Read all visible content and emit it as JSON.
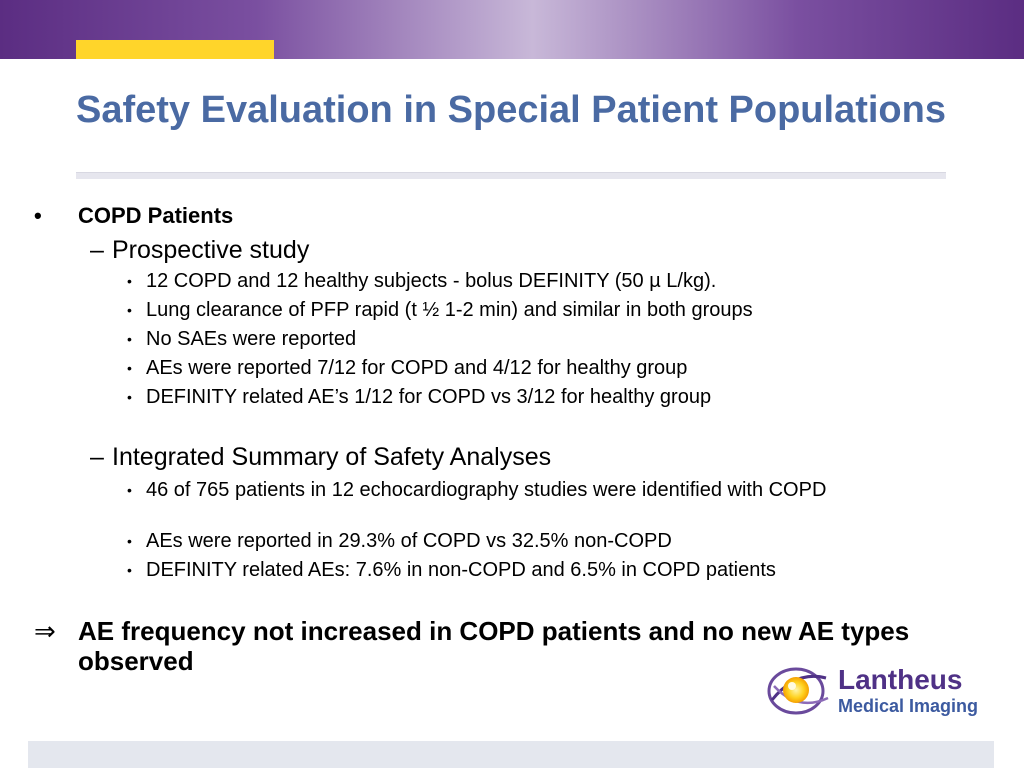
{
  "title": "Safety Evaluation in Special Patient Populations",
  "colors": {
    "title": "#4a6aa3",
    "accent": "#ffd52a",
    "band": "#5b2d82",
    "logo_purple": "#4f3186",
    "logo_blue": "#3c5aa0"
  },
  "section": {
    "bullet": "•",
    "label": "COPD Patients",
    "subsections": [
      {
        "dash": "–",
        "label": "Prospective study",
        "items": [
          "12 COPD and 12 healthy subjects - bolus DEFINITY (50  µ L/kg).",
          "Lung clearance of PFP rapid (t ½ 1-2 min) and similar in both groups",
          "No SAEs were reported",
          "AEs were reported 7/12 for COPD and 4/12 for healthy group",
          "DEFINITY related AE’s 1/12 for COPD vs 3/12 for healthy group"
        ]
      },
      {
        "dash": "–",
        "label": "Integrated Summary of Safety Analyses",
        "items": [
          "46 of 765 patients in 12 echocardiography studies were identified with COPD",
          "AEs were reported in 29.3% of COPD vs 32.5% non-COPD",
          "DEFINITY related AEs:  7.6% in non-COPD and 6.5% in COPD patients"
        ]
      }
    ]
  },
  "conclusion": {
    "arrow": "⇒",
    "text": "AE frequency not increased in COPD patients and no new AE types observed"
  },
  "logo": {
    "name": "Lantheus",
    "tagline": "Medical Imaging",
    "icon": "lantheus-swirl-logo"
  }
}
